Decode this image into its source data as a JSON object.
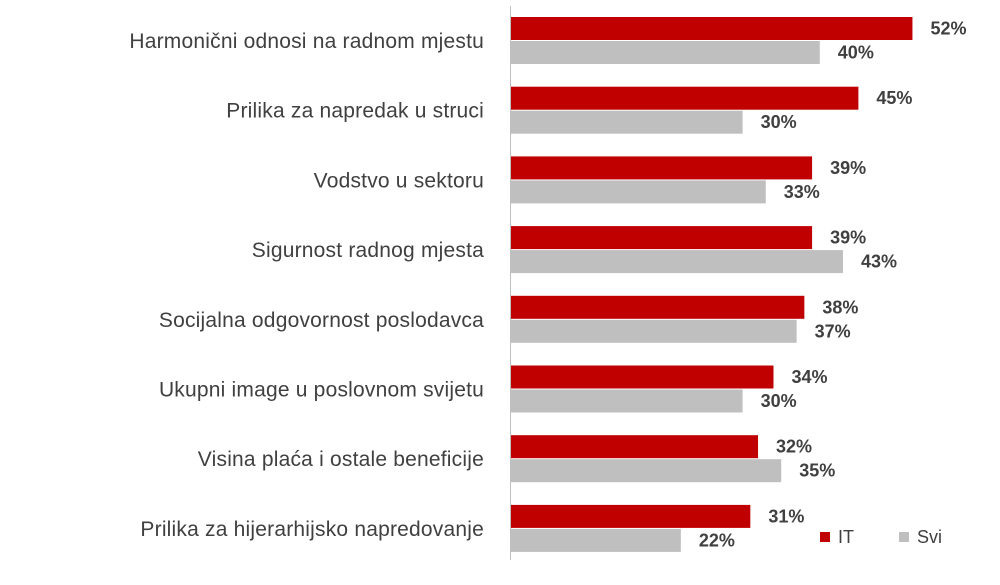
{
  "colors": {
    "it": "#c00000",
    "svi": "#bfbfbf",
    "axis": "#bfbfbf",
    "text": "#404040"
  },
  "legend": {
    "position": "bottom-right",
    "it_label": "IT",
    "svi_label": "Svi"
  },
  "chart_data": {
    "type": "bar",
    "orientation": "horizontal",
    "categories": [
      "Harmonični odnosi na radnom mjestu",
      "Prilika za napredak u struci",
      "Vodstvo u sektoru",
      "Sigurnost radnog mjesta",
      "Socijalna odgovornost poslodavca",
      "Ukupni image u poslovnom svijetu",
      "Visina plaća i ostale beneficije",
      "Prilika za hijerarhijsko napredovanje"
    ],
    "series": [
      {
        "name": "IT",
        "values": [
          52,
          45,
          39,
          39,
          38,
          34,
          32,
          31
        ],
        "labels": [
          "52%",
          "45%",
          "39%",
          "39%",
          "38%",
          "34%",
          "32%",
          "31%"
        ]
      },
      {
        "name": "Svi",
        "values": [
          40,
          30,
          33,
          43,
          37,
          30,
          35,
          22
        ],
        "labels": [
          "40%",
          "30%",
          "33%",
          "43%",
          "37%",
          "30%",
          "35%",
          "22%"
        ]
      }
    ],
    "xlim": [
      0,
      60
    ],
    "grid": false,
    "title": "",
    "xlabel": "",
    "ylabel": ""
  }
}
